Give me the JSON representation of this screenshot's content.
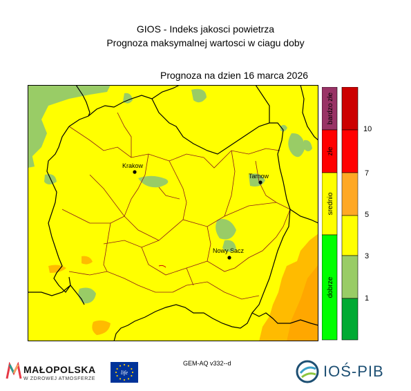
{
  "header": {
    "title": "GIOS - Indeks jakosci powietrza",
    "subtitle": "Prognoza maksymalnej wartosci w ciagu doby",
    "forecast_date": "Prognoza na dzien  16 marca 2026"
  },
  "map": {
    "cities": [
      {
        "name": "Krakow"
      },
      {
        "name": "Tarnow"
      },
      {
        "name": "Nowy Sacz"
      }
    ]
  },
  "legend": {
    "categories": [
      {
        "label": "bardzo złe",
        "color": "#993366"
      },
      {
        "label": "złe",
        "color": "#ff0000"
      },
      {
        "label": "srednio",
        "color": "#ffff00"
      },
      {
        "label": "dobrze",
        "color": "#00ff00"
      }
    ],
    "scale_colors": [
      "#cc0000",
      "#ff0000",
      "#ff9900",
      "#ffff00",
      "#99cc66",
      "#00aa33"
    ],
    "ticks": [
      "10",
      "7",
      "5",
      "3",
      "1"
    ]
  },
  "colors": {
    "very_good": "#00aa33",
    "good": "#99cc66",
    "moderate": "#ffff00",
    "sufficient": "#ffbb00",
    "bad": "#ff0000",
    "very_bad": "#cc0000"
  },
  "footer": {
    "model": "GEM-AQ v332--d",
    "logo_left_name": "MAŁOPOLSKA",
    "logo_left_tagline": "W ZDROWEJ ATMOSFERZE",
    "logo_eu_text": "life",
    "logo_right_name": "IOŚ-PIB"
  }
}
